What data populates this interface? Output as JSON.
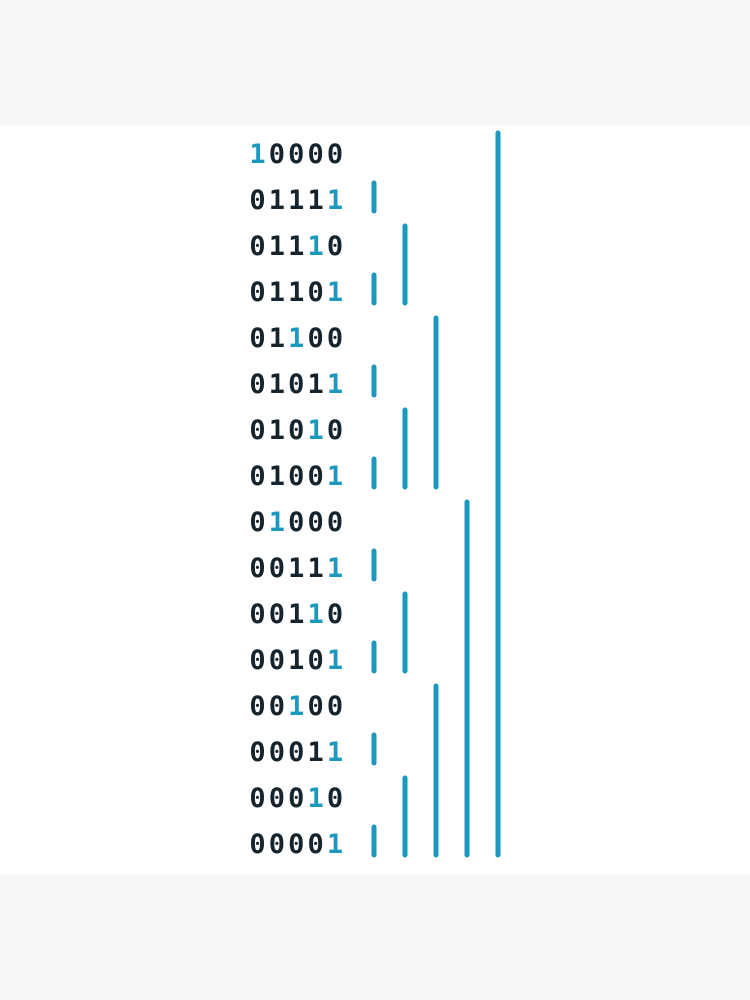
{
  "colors": {
    "background": "#f6f6f6",
    "artboard": "#ffffff",
    "text": "#14232c",
    "highlight": "#1b98bd",
    "bar": "#1b98bd"
  },
  "rows": [
    {
      "label": "10000",
      "highlight_index": 0
    },
    {
      "label": "01111",
      "highlight_index": 4
    },
    {
      "label": "01110",
      "highlight_index": 3
    },
    {
      "label": "01101",
      "highlight_index": 4
    },
    {
      "label": "01100",
      "highlight_index": 2
    },
    {
      "label": "01011",
      "highlight_index": 4
    },
    {
      "label": "01010",
      "highlight_index": 3
    },
    {
      "label": "01001",
      "highlight_index": 4
    },
    {
      "label": "01000",
      "highlight_index": 1
    },
    {
      "label": "00111",
      "highlight_index": 4
    },
    {
      "label": "00110",
      "highlight_index": 3
    },
    {
      "label": "00101",
      "highlight_index": 4
    },
    {
      "label": "00100",
      "highlight_index": 2
    },
    {
      "label": "00011",
      "highlight_index": 4
    },
    {
      "label": "00010",
      "highlight_index": 3
    },
    {
      "label": "00001",
      "highlight_index": 4
    }
  ],
  "bars": [
    {
      "level": 1,
      "start_row": 1,
      "end_row": 1
    },
    {
      "level": 1,
      "start_row": 3,
      "end_row": 3
    },
    {
      "level": 1,
      "start_row": 5,
      "end_row": 5
    },
    {
      "level": 1,
      "start_row": 7,
      "end_row": 7
    },
    {
      "level": 1,
      "start_row": 9,
      "end_row": 9
    },
    {
      "level": 1,
      "start_row": 11,
      "end_row": 11
    },
    {
      "level": 1,
      "start_row": 13,
      "end_row": 13
    },
    {
      "level": 1,
      "start_row": 15,
      "end_row": 15
    },
    {
      "level": 2,
      "start_row": 2,
      "end_row": 3
    },
    {
      "level": 2,
      "start_row": 6,
      "end_row": 7
    },
    {
      "level": 2,
      "start_row": 10,
      "end_row": 11
    },
    {
      "level": 2,
      "start_row": 14,
      "end_row": 15
    },
    {
      "level": 3,
      "start_row": 4,
      "end_row": 7
    },
    {
      "level": 3,
      "start_row": 12,
      "end_row": 15
    },
    {
      "level": 4,
      "start_row": 8,
      "end_row": 15
    },
    {
      "level": 5,
      "start_row": 0,
      "end_row": 15
    }
  ]
}
